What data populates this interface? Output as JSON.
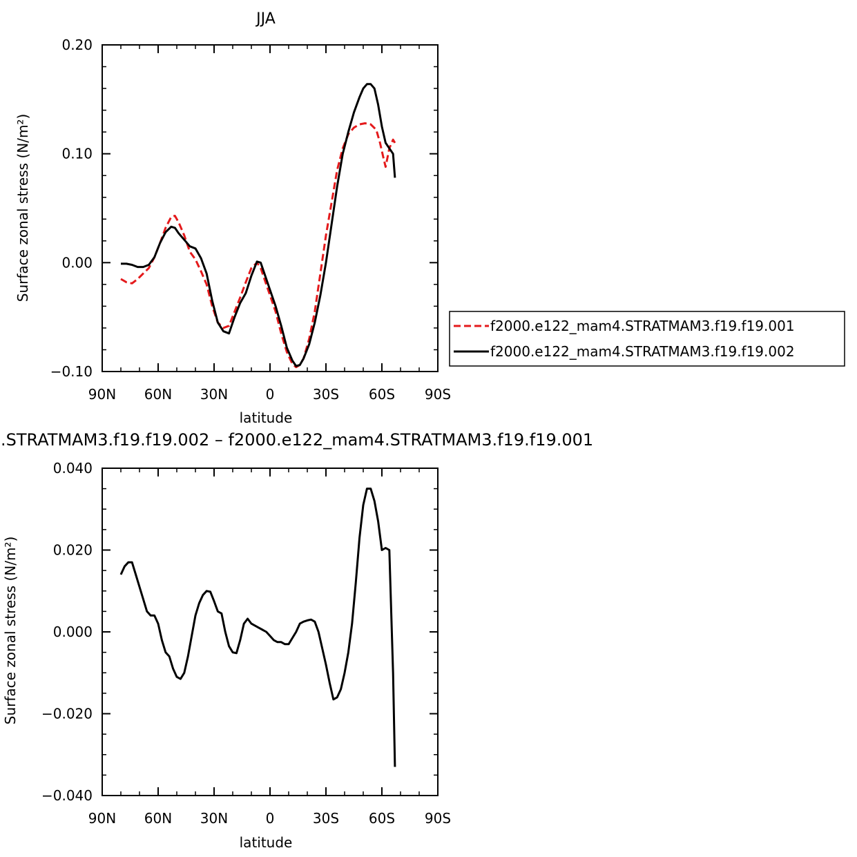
{
  "chart_data": [
    {
      "type": "line",
      "title": "JJA",
      "xlabel": "latitude",
      "ylabel": "Surface zonal stress (N/m²)",
      "xlim": [
        -90,
        90
      ],
      "ylim": [
        -0.1,
        0.2
      ],
      "x_tick_values": [
        -90,
        -60,
        -30,
        0,
        30,
        60,
        90
      ],
      "x_tick_labels": [
        "90N",
        "60N",
        "30N",
        "0",
        "30S",
        "60S",
        "90S"
      ],
      "y_tick_values": [
        -0.1,
        0.0,
        0.1,
        0.2
      ],
      "y_tick_labels": [
        "−0.10",
        "0.00",
        "0.10",
        "0.20"
      ],
      "legend_position": "right",
      "series": [
        {
          "name": "f2000.e122_mam4.STRATMAM3.f19.f19.001",
          "color": "#e41a1c",
          "dash": "dashed",
          "x": [
            -80,
            -77,
            -74,
            -71,
            -68,
            -65,
            -62,
            -59,
            -56,
            -53,
            -51,
            -49,
            -46,
            -43,
            -40,
            -37,
            -34,
            -31,
            -28,
            -25,
            -22,
            -19,
            -16,
            -13,
            -10,
            -7,
            -5,
            -3,
            0,
            3,
            6,
            9,
            12,
            14,
            16,
            18,
            21,
            24,
            27,
            30,
            33,
            36,
            39,
            42,
            45,
            48,
            51,
            54,
            57,
            59,
            61,
            62,
            64,
            66,
            67
          ],
          "values": [
            -0.015,
            -0.018,
            -0.019,
            -0.015,
            -0.01,
            -0.005,
            0.005,
            0.018,
            0.032,
            0.042,
            0.043,
            0.037,
            0.025,
            0.01,
            0.003,
            -0.008,
            -0.02,
            -0.04,
            -0.055,
            -0.06,
            -0.058,
            -0.045,
            -0.032,
            -0.018,
            -0.005,
            0.0,
            -0.005,
            -0.015,
            -0.03,
            -0.045,
            -0.065,
            -0.082,
            -0.093,
            -0.096,
            -0.094,
            -0.088,
            -0.07,
            -0.045,
            -0.01,
            0.025,
            0.055,
            0.085,
            0.105,
            0.118,
            0.124,
            0.127,
            0.128,
            0.127,
            0.122,
            0.11,
            0.095,
            0.088,
            0.105,
            0.113,
            0.11
          ]
        },
        {
          "name": "f2000.e122_mam4.STRATMAM3.f19.f19.002",
          "color": "#000000",
          "dash": "solid",
          "x": [
            -80,
            -77,
            -74,
            -71,
            -68,
            -65,
            -62,
            -59,
            -56,
            -53,
            -51,
            -49,
            -46,
            -43,
            -40,
            -37,
            -34,
            -31,
            -28,
            -25,
            -22,
            -19,
            -16,
            -13,
            -10,
            -7,
            -5,
            -3,
            0,
            3,
            6,
            9,
            12,
            14,
            16,
            18,
            21,
            24,
            27,
            30,
            33,
            36,
            39,
            42,
            45,
            48,
            50,
            52,
            54,
            56,
            58,
            60,
            62,
            64,
            66,
            67
          ],
          "values": [
            -0.001,
            -0.001,
            -0.002,
            -0.004,
            -0.004,
            -0.002,
            0.005,
            0.018,
            0.028,
            0.033,
            0.032,
            0.027,
            0.021,
            0.015,
            0.013,
            0.004,
            -0.01,
            -0.035,
            -0.055,
            -0.063,
            -0.065,
            -0.05,
            -0.037,
            -0.028,
            -0.012,
            0.001,
            0.0,
            -0.01,
            -0.025,
            -0.04,
            -0.058,
            -0.078,
            -0.09,
            -0.095,
            -0.094,
            -0.088,
            -0.075,
            -0.055,
            -0.03,
            0.0,
            0.035,
            0.07,
            0.1,
            0.12,
            0.138,
            0.152,
            0.16,
            0.164,
            0.164,
            0.16,
            0.145,
            0.125,
            0.11,
            0.105,
            0.1,
            0.078
          ]
        }
      ]
    },
    {
      "type": "line",
      "title": ".STRATMAM3.f19.f19.002 – f2000.e122_mam4.STRATMAM3.f19.f19.001",
      "xlabel": "latitude",
      "ylabel": "Surface zonal stress (N/m²)",
      "xlim": [
        -90,
        90
      ],
      "ylim": [
        -0.04,
        0.04
      ],
      "x_tick_values": [
        -90,
        -60,
        -30,
        0,
        30,
        60,
        90
      ],
      "x_tick_labels": [
        "90N",
        "60N",
        "30N",
        "0",
        "30S",
        "60S",
        "90S"
      ],
      "y_tick_values": [
        -0.04,
        -0.02,
        0.0,
        0.02,
        0.04
      ],
      "y_tick_labels": [
        "−0.040",
        "−0.020",
        "0.000",
        "0.020",
        "0.040"
      ],
      "series": [
        {
          "color": "#000000",
          "dash": "solid",
          "x": [
            -80,
            -78,
            -76,
            -74,
            -72,
            -70,
            -68,
            -66,
            -64,
            -62,
            -60,
            -58,
            -56,
            -54,
            -52,
            -50,
            -48,
            -46,
            -44,
            -42,
            -40,
            -38,
            -36,
            -34,
            -32,
            -30,
            -28,
            -26,
            -24,
            -22,
            -20,
            -18,
            -16,
            -14,
            -12,
            -10,
            -8,
            -6,
            -4,
            -2,
            0,
            2,
            4,
            6,
            8,
            10,
            12,
            14,
            16,
            18,
            20,
            22,
            24,
            26,
            28,
            30,
            32,
            34,
            36,
            38,
            40,
            42,
            44,
            46,
            48,
            50,
            52,
            54,
            56,
            58,
            60,
            62,
            64,
            66,
            67
          ],
          "values": [
            0.014,
            0.016,
            0.017,
            0.017,
            0.014,
            0.011,
            0.008,
            0.005,
            0.004,
            0.004,
            0.002,
            -0.002,
            -0.005,
            -0.006,
            -0.009,
            -0.011,
            -0.0115,
            -0.01,
            -0.006,
            -0.001,
            0.004,
            0.007,
            0.009,
            0.01,
            0.0098,
            0.0075,
            0.005,
            0.0045,
            0.0,
            -0.0035,
            -0.005,
            -0.0052,
            -0.002,
            0.002,
            0.0032,
            0.002,
            0.0015,
            0.001,
            0.0005,
            0.0,
            -0.001,
            -0.002,
            -0.0025,
            -0.0025,
            -0.003,
            -0.003,
            -0.0015,
            0.0,
            0.002,
            0.0025,
            0.0028,
            0.003,
            0.0025,
            0.0,
            -0.004,
            -0.008,
            -0.0125,
            -0.0165,
            -0.016,
            -0.014,
            -0.01,
            -0.005,
            0.002,
            0.012,
            0.023,
            0.031,
            0.035,
            0.035,
            0.032,
            0.027,
            0.02,
            0.0205,
            0.02,
            -0.01,
            -0.033
          ]
        }
      ]
    }
  ]
}
